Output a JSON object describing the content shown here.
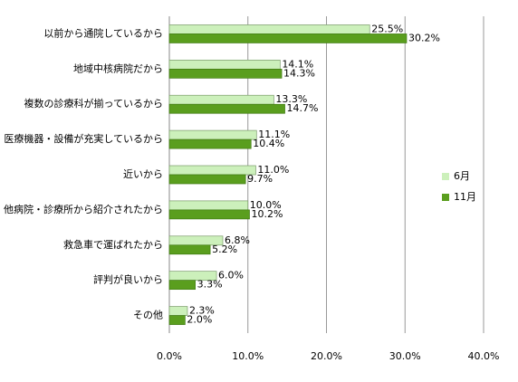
{
  "chart_data": {
    "type": "bar",
    "orientation": "horizontal",
    "categories": [
      "以前から通院しているから",
      "地域中核病院だから",
      "複数の診療科が揃っているから",
      "医療機器・設備が充実しているから",
      "近いから",
      "他病院・診療所から紹介されたから",
      "救急車で運ばれたから",
      "評判が良いから",
      "その他"
    ],
    "series": [
      {
        "name": "6月",
        "color": "#ccf0bb",
        "values": [
          25.5,
          14.1,
          13.3,
          11.1,
          11.0,
          10.0,
          6.8,
          6.0,
          2.3
        ],
        "value_labels": [
          "25.5%",
          "14.1%",
          "13.3%",
          "11.1%",
          "11.0%",
          "10.0%",
          "6.8%",
          "6.0%",
          "2.3%"
        ]
      },
      {
        "name": "11月",
        "color": "#5a9e1e",
        "values": [
          30.2,
          14.3,
          14.7,
          10.4,
          9.7,
          10.2,
          5.2,
          3.3,
          2.0
        ],
        "value_labels": [
          "30.2%",
          "14.3%",
          "14.7%",
          "10.4%",
          "9.7%",
          "10.2%",
          "5.2%",
          "3.3%",
          "2.0%"
        ]
      }
    ],
    "xlim": [
      0,
      40
    ],
    "xticks": [
      {
        "value": 0,
        "label": "0.0%"
      },
      {
        "value": 10,
        "label": "10.0%"
      },
      {
        "value": 20,
        "label": "20.0%"
      },
      {
        "value": 30,
        "label": "30.0%"
      },
      {
        "value": 40,
        "label": "40.0%"
      }
    ],
    "grid": true,
    "legend": "right"
  }
}
